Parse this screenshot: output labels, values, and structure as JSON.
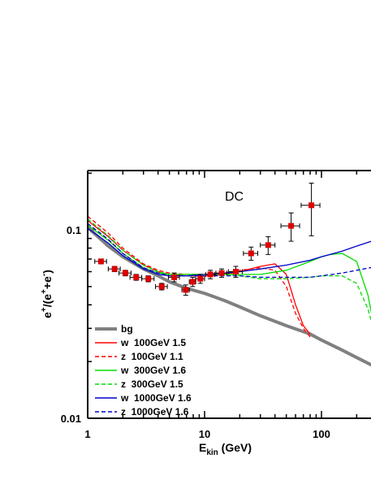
{
  "chart_data": {
    "type": "line",
    "annotation": "DC",
    "xlabel": {
      "main": "E",
      "sub": "kin",
      "unit": " (GeV)"
    },
    "ylabel": {
      "p1": "e",
      "sup1": "+",
      "p2": "/(e",
      "sup2": "+",
      "p3": "+e",
      "sup3": "-",
      "p4": ")"
    },
    "xscale": "log",
    "yscale": "log",
    "xlim": [
      1,
      300
    ],
    "ylim": [
      0.01,
      0.2
    ],
    "xticks": [
      {
        "v": 1,
        "label": "1"
      },
      {
        "v": 10,
        "label": "10"
      },
      {
        "v": 100,
        "label": "100"
      }
    ],
    "yticks": [
      {
        "v": 0.01,
        "label": "0.01"
      },
      {
        "v": 0.1,
        "label": "0.1"
      }
    ],
    "legend_position": "bottom-left",
    "series": [
      {
        "name": "bg",
        "color": "#808080",
        "dash": "solid",
        "width": 4,
        "x": [
          1,
          1.5,
          2,
          3,
          4,
          5,
          7,
          10,
          15,
          20,
          30,
          50,
          80,
          100,
          150,
          200,
          300
        ],
        "y": [
          0.103,
          0.082,
          0.072,
          0.062,
          0.057,
          0.053,
          0.049,
          0.046,
          0.042,
          0.039,
          0.035,
          0.031,
          0.028,
          0.026,
          0.023,
          0.021,
          0.0185
        ]
      },
      {
        "name": "w  100GeV 1.5",
        "color": "#ff0000",
        "dash": "solid",
        "width": 1.3,
        "x": [
          1,
          1.5,
          2,
          3,
          4,
          5,
          7,
          10,
          15,
          20,
          30,
          40,
          50,
          60,
          70,
          80
        ],
        "y": [
          0.112,
          0.092,
          0.078,
          0.065,
          0.06,
          0.058,
          0.057,
          0.057,
          0.058,
          0.06,
          0.064,
          0.066,
          0.058,
          0.04,
          0.031,
          0.028
        ]
      },
      {
        "name": "z  100GeV 1.1",
        "color": "#ff0000",
        "dash": "dashed",
        "width": 1.3,
        "x": [
          1,
          1.5,
          2,
          3,
          4,
          5,
          7,
          10,
          15,
          20,
          30,
          40,
          50,
          60,
          70,
          80
        ],
        "y": [
          0.118,
          0.096,
          0.08,
          0.066,
          0.061,
          0.059,
          0.058,
          0.058,
          0.059,
          0.061,
          0.063,
          0.061,
          0.05,
          0.036,
          0.03,
          0.027
        ]
      },
      {
        "name": "w  300GeV 1.6",
        "color": "#00dd00",
        "dash": "solid",
        "width": 1.3,
        "x": [
          1,
          1.5,
          2,
          3,
          4,
          5,
          7,
          10,
          15,
          20,
          30,
          50,
          80,
          100,
          120,
          150,
          200,
          250,
          300
        ],
        "y": [
          0.106,
          0.088,
          0.075,
          0.063,
          0.059,
          0.058,
          0.058,
          0.058,
          0.058,
          0.058,
          0.058,
          0.061,
          0.068,
          0.072,
          0.074,
          0.075,
          0.068,
          0.045,
          0.025
        ]
      },
      {
        "name": "z  300GeV 1.5",
        "color": "#00dd00",
        "dash": "dashed",
        "width": 1.3,
        "x": [
          1,
          1.5,
          2,
          3,
          4,
          5,
          7,
          10,
          15,
          20,
          30,
          50,
          80,
          100,
          150,
          200,
          250,
          300
        ],
        "y": [
          0.114,
          0.093,
          0.078,
          0.065,
          0.06,
          0.058,
          0.058,
          0.058,
          0.058,
          0.057,
          0.055,
          0.055,
          0.056,
          0.057,
          0.057,
          0.052,
          0.038,
          0.025
        ]
      },
      {
        "name": "w  1000GeV 1.6",
        "color": "#0000cc",
        "dash": "solid",
        "width": 1.3,
        "x": [
          1,
          1.5,
          2,
          3,
          4,
          5,
          7,
          10,
          15,
          20,
          30,
          50,
          80,
          100,
          150,
          200,
          300
        ],
        "y": [
          0.102,
          0.085,
          0.073,
          0.062,
          0.058,
          0.057,
          0.057,
          0.058,
          0.059,
          0.06,
          0.062,
          0.065,
          0.069,
          0.072,
          0.077,
          0.082,
          0.089
        ]
      },
      {
        "name": "z  1000GeV 1.6",
        "color": "#0000cc",
        "dash": "dashed",
        "width": 1.3,
        "x": [
          1,
          1.5,
          2,
          3,
          4,
          5,
          7,
          10,
          15,
          20,
          30,
          50,
          80,
          100,
          150,
          200,
          300
        ],
        "y": [
          0.108,
          0.089,
          0.075,
          0.063,
          0.059,
          0.057,
          0.057,
          0.057,
          0.057,
          0.057,
          0.056,
          0.056,
          0.056,
          0.057,
          0.059,
          0.061,
          0.064
        ]
      }
    ],
    "data_points": {
      "color": "#dd0000",
      "x": [
        1.3,
        1.7,
        2.1,
        2.6,
        3.3,
        4.3,
        5.5,
        6.9,
        7.9,
        9.2,
        11.2,
        14.0,
        18.5,
        25.0,
        35.0,
        55.0,
        82.0
      ],
      "y": [
        0.068,
        0.062,
        0.059,
        0.056,
        0.055,
        0.05,
        0.056,
        0.048,
        0.053,
        0.055,
        0.058,
        0.059,
        0.06,
        0.075,
        0.083,
        0.105,
        0.135
      ],
      "xerr": [
        0.15,
        0.2,
        0.25,
        0.3,
        0.4,
        0.5,
        0.6,
        0.5,
        0.5,
        0.8,
        1.0,
        1.5,
        2.5,
        3.5,
        5.0,
        10.0,
        15.0
      ],
      "yerr": [
        0.002,
        0.002,
        0.002,
        0.002,
        0.002,
        0.002,
        0.003,
        0.003,
        0.003,
        0.003,
        0.003,
        0.003,
        0.004,
        0.006,
        0.009,
        0.018,
        0.042
      ]
    }
  }
}
